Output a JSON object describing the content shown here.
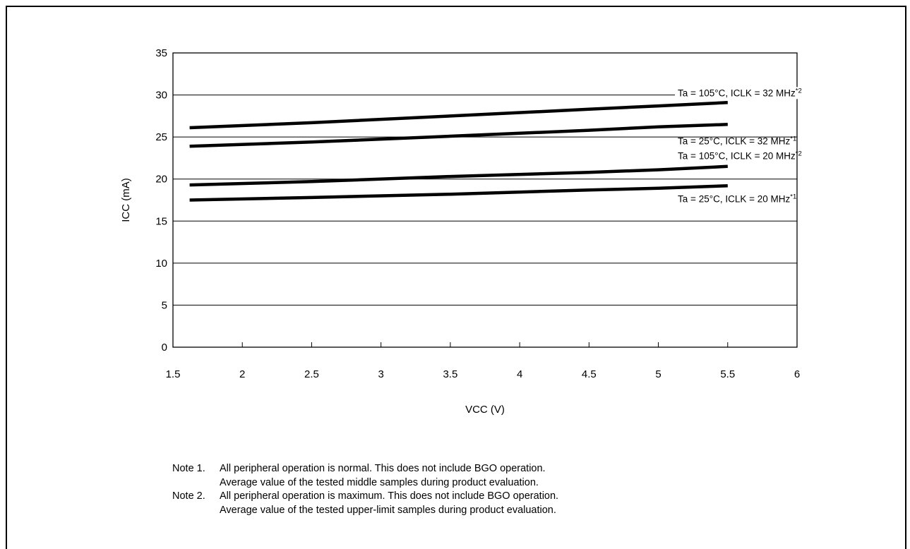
{
  "chart_data": {
    "type": "line",
    "title": "",
    "xlabel": "VCC (V)",
    "ylabel": "ICC (mA)",
    "xlim": [
      1.5,
      6
    ],
    "ylim": [
      0,
      35
    ],
    "x_ticks": [
      1.5,
      2,
      2.5,
      3,
      3.5,
      4,
      4.5,
      5,
      5.5,
      6
    ],
    "x_tick_labels": [
      "1.5",
      "2",
      "2.5",
      "3",
      "3.5",
      "4",
      "4.5",
      "5",
      "5.5",
      "6"
    ],
    "y_ticks": [
      0,
      5,
      10,
      15,
      20,
      25,
      30,
      35
    ],
    "y_tick_labels": [
      "0",
      "5",
      "10",
      "15",
      "20",
      "25",
      "30",
      "35"
    ],
    "grid": "horizontal",
    "legend": "none",
    "series": [
      {
        "name": "Ta = 105°C, ICLK = 32 MHz*2",
        "label_main": "Ta = 105°C, ICLK = 32 MHz",
        "label_sup": "*2",
        "x": [
          1.62,
          2.5,
          3.5,
          4.5,
          5.0,
          5.5
        ],
        "values": [
          26.1,
          26.7,
          27.5,
          28.3,
          28.7,
          29.1
        ]
      },
      {
        "name": "Ta = 25°C, ICLK = 32 MHz*1",
        "label_main": "Ta = 25°C, ICLK = 32 MHz",
        "label_sup": "*1",
        "x": [
          1.62,
          2.5,
          3.5,
          4.5,
          5.0,
          5.5
        ],
        "values": [
          23.9,
          24.4,
          25.1,
          25.8,
          26.2,
          26.5
        ]
      },
      {
        "name": "Ta = 105°C, ICLK = 20 MHz*2",
        "label_main": "Ta = 105°C, ICLK = 20 MHz",
        "label_sup": "*2",
        "x": [
          1.62,
          2.5,
          3.5,
          4.5,
          5.0,
          5.5
        ],
        "values": [
          19.3,
          19.7,
          20.3,
          20.8,
          21.1,
          21.5
        ]
      },
      {
        "name": "Ta = 25°C, ICLK = 20 MHz*1",
        "label_main": "Ta = 25°C, ICLK = 20 MHz",
        "label_sup": "*1",
        "x": [
          1.62,
          2.5,
          3.5,
          4.5,
          5.0,
          5.5
        ],
        "values": [
          17.5,
          17.8,
          18.2,
          18.7,
          18.9,
          19.2
        ]
      }
    ]
  },
  "notes": [
    {
      "label": "Note 1.",
      "lines": [
        "All peripheral operation is normal. This does not include BGO operation.",
        "Average value of the tested middle samples during product evaluation."
      ]
    },
    {
      "label": "Note 2.",
      "lines": [
        "All peripheral operation is maximum. This does not include BGO operation.",
        "Average value of the tested upper-limit samples during product evaluation."
      ]
    }
  ]
}
